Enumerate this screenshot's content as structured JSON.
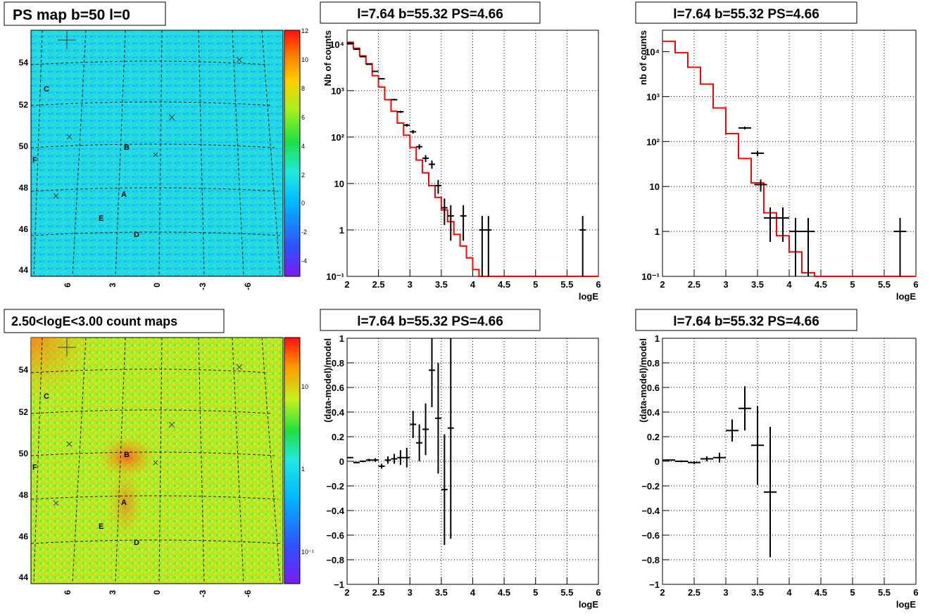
{
  "panels": {
    "ps_map": {
      "title": "PS map b=50 l=0"
    },
    "count_map": {
      "title": "2.50<logE<3.00 count maps"
    },
    "spec_left": {
      "title": "l=7.64 b=55.32 PS=4.66"
    },
    "spec_right": {
      "title": "l=7.64 b=55.32 PS=4.66"
    },
    "res_left": {
      "title": "l=7.64 b=55.32 PS=4.66"
    },
    "res_right": {
      "title": "l=7.64 b=55.32 PS=4.66"
    }
  },
  "colors": {
    "model_line": "#ff0000",
    "data_marker": "#000000",
    "map_background_top": "#22d8e8",
    "map_background_bottom": "#b4f020"
  },
  "map_axes": {
    "y_ticks": [
      "54",
      "52",
      "50",
      "48",
      "46",
      "44"
    ],
    "y_ticks_bottom": [
      "54",
      "52",
      "50",
      "48",
      "46",
      "44"
    ],
    "x_ticks": [
      "6",
      "3",
      "0",
      "-3",
      "-6"
    ],
    "source_labels": [
      "A",
      "B",
      "C",
      "D",
      "E",
      "F"
    ],
    "ps_colorbar_ticks": [
      "12",
      "10",
      "8",
      "6",
      "4",
      "2",
      "0",
      "-2",
      "-4"
    ],
    "count_colorbar_ticks": [
      "10",
      "1",
      "10⁻¹"
    ]
  },
  "chart_data": [
    {
      "type": "line",
      "subtype": "step-histogram-with-points",
      "title": "l=7.64 b=55.32 PS=4.66",
      "xlabel": "logE",
      "ylabel": "Nb of counts",
      "xlim": [
        2,
        6
      ],
      "ylim": [
        0.1,
        20000
      ],
      "log_y": true,
      "grid": true,
      "x_ticks": [
        "2",
        "2.5",
        "3",
        "3.5",
        "4",
        "4.5",
        "5",
        "5.5",
        "6"
      ],
      "y_ticks": [
        "10⁻¹",
        "1",
        "10",
        "10²",
        "10³",
        "10⁴"
      ],
      "model": {
        "bin_width": 0.1,
        "bin_start": 2.0,
        "values": [
          11000,
          8200,
          5600,
          3800,
          2100,
          1200,
          640,
          360,
          200,
          110,
          60,
          32,
          17,
          9,
          5,
          2.7,
          1.5,
          0.8,
          0.45,
          0.25,
          0.14,
          0.1,
          0.1,
          0.1,
          0.1,
          0.1,
          0.1,
          0.1,
          0.1,
          0.1,
          0.1,
          0.1,
          0.1,
          0.1,
          0.1,
          0.1,
          0.1,
          0.1,
          0.1,
          0.1
        ]
      },
      "data": [
        {
          "x": 2.05,
          "y": 10500
        },
        {
          "x": 2.15,
          "y": 7800
        },
        {
          "x": 2.25,
          "y": 5400
        },
        {
          "x": 2.35,
          "y": 3700
        },
        {
          "x": 2.45,
          "y": 2600
        },
        {
          "x": 2.55,
          "y": 1800
        },
        {
          "x": 2.75,
          "y": 640
        },
        {
          "x": 2.85,
          "y": 350
        },
        {
          "x": 2.95,
          "y": 180
        },
        {
          "x": 3.05,
          "y": 130
        },
        {
          "x": 3.15,
          "y": 62
        },
        {
          "x": 3.25,
          "y": 35
        },
        {
          "x": 3.35,
          "y": 26
        },
        {
          "x": 3.45,
          "y": 9
        },
        {
          "x": 3.55,
          "y": 3
        },
        {
          "x": 3.65,
          "y": 2
        },
        {
          "x": 3.85,
          "y": 2
        },
        {
          "x": 4.15,
          "y": 1
        },
        {
          "x": 4.25,
          "y": 1
        },
        {
          "x": 5.75,
          "y": 1
        }
      ]
    },
    {
      "type": "line",
      "subtype": "step-histogram-with-points",
      "title": "l=7.64 b=55.32 PS=4.66",
      "xlabel": "logE",
      "ylabel": "nb of counts",
      "xlim": [
        2,
        6
      ],
      "ylim": [
        0.1,
        30000
      ],
      "log_y": true,
      "grid": true,
      "x_ticks": [
        "2",
        "2.5",
        "3",
        "3.5",
        "4",
        "4.5",
        "5",
        "5.5",
        "6"
      ],
      "y_ticks": [
        "10⁻¹",
        "1",
        "10",
        "10²",
        "10³",
        "10⁴"
      ],
      "model": {
        "bin_width": 0.2,
        "bin_start": 2.0,
        "values": [
          17000,
          9500,
          4500,
          1900,
          560,
          150,
          42,
          12,
          2.6,
          0.8,
          0.35,
          0.12,
          0.1,
          0.1,
          0.1,
          0.1,
          0.1,
          0.1,
          0.1,
          0.1
        ]
      },
      "data": [
        {
          "x": 3.3,
          "y": 200
        },
        {
          "x": 3.5,
          "y": 55
        },
        {
          "x": 3.55,
          "y": 11
        },
        {
          "x": 3.7,
          "y": 2
        },
        {
          "x": 3.9,
          "y": 2
        },
        {
          "x": 4.1,
          "y": 1
        },
        {
          "x": 4.3,
          "y": 1
        },
        {
          "x": 5.75,
          "y": 1
        }
      ]
    },
    {
      "type": "scatter",
      "subtype": "error-bars",
      "title": "l=7.64 b=55.32 PS=4.66",
      "xlabel": "logE",
      "ylabel": "(data-model)/model",
      "xlim": [
        2,
        6
      ],
      "ylim": [
        -1,
        1
      ],
      "grid": true,
      "x_ticks": [
        "2",
        "2.5",
        "3",
        "3.5",
        "4",
        "4.5",
        "5",
        "5.5",
        "6"
      ],
      "y_ticks": [
        "−1",
        "−0.8",
        "−0.6",
        "−0.4",
        "−0.2",
        "0",
        "0.2",
        "0.4",
        "0.6",
        "0.8",
        "1"
      ],
      "x_err": 0.05,
      "points": [
        {
          "x": 2.05,
          "y": 0.03,
          "err": 0.005
        },
        {
          "x": 2.15,
          "y": -0.01,
          "err": 0.006
        },
        {
          "x": 2.25,
          "y": 0.0,
          "err": 0.008
        },
        {
          "x": 2.35,
          "y": 0.01,
          "err": 0.01
        },
        {
          "x": 2.45,
          "y": 0.01,
          "err": 0.015
        },
        {
          "x": 2.55,
          "y": -0.04,
          "err": 0.02
        },
        {
          "x": 2.65,
          "y": 0.01,
          "err": 0.03
        },
        {
          "x": 2.75,
          "y": 0.02,
          "err": 0.04
        },
        {
          "x": 2.85,
          "y": 0.03,
          "err": 0.06
        },
        {
          "x": 2.95,
          "y": 0.03,
          "err": 0.08
        },
        {
          "x": 3.05,
          "y": 0.3,
          "err": 0.11
        },
        {
          "x": 3.15,
          "y": 0.15,
          "err": 0.15
        },
        {
          "x": 3.25,
          "y": 0.26,
          "err": 0.21
        },
        {
          "x": 3.35,
          "y": 0.74,
          "err": 0.3
        },
        {
          "x": 3.45,
          "y": 0.35,
          "err": 0.45
        },
        {
          "x": 3.55,
          "y": -0.23,
          "err": 0.45
        },
        {
          "x": 3.65,
          "y": 0.27,
          "err": 0.9
        }
      ]
    },
    {
      "type": "scatter",
      "subtype": "error-bars",
      "title": "l=7.64 b=55.32 PS=4.66",
      "xlabel": "logE",
      "ylabel": "(data-model)/model",
      "xlim": [
        2,
        6
      ],
      "ylim": [
        -1,
        1
      ],
      "grid": true,
      "x_ticks": [
        "2",
        "2.5",
        "3",
        "3.5",
        "4",
        "4.5",
        "5",
        "5.5",
        "6"
      ],
      "y_ticks": [
        "−1",
        "−0.8",
        "−0.6",
        "−0.4",
        "−0.2",
        "0",
        "0.2",
        "0.4",
        "0.6",
        "0.8",
        "1"
      ],
      "x_err": 0.1,
      "points": [
        {
          "x": 2.1,
          "y": 0.01,
          "err": 0.005
        },
        {
          "x": 2.3,
          "y": 0.0,
          "err": 0.008
        },
        {
          "x": 2.5,
          "y": -0.01,
          "err": 0.012
        },
        {
          "x": 2.7,
          "y": 0.02,
          "err": 0.02
        },
        {
          "x": 2.9,
          "y": 0.03,
          "err": 0.04
        },
        {
          "x": 3.1,
          "y": 0.25,
          "err": 0.09
        },
        {
          "x": 3.3,
          "y": 0.43,
          "err": 0.18
        },
        {
          "x": 3.5,
          "y": 0.13,
          "err": 0.32
        },
        {
          "x": 3.7,
          "y": -0.25,
          "err": 0.53
        }
      ]
    }
  ]
}
